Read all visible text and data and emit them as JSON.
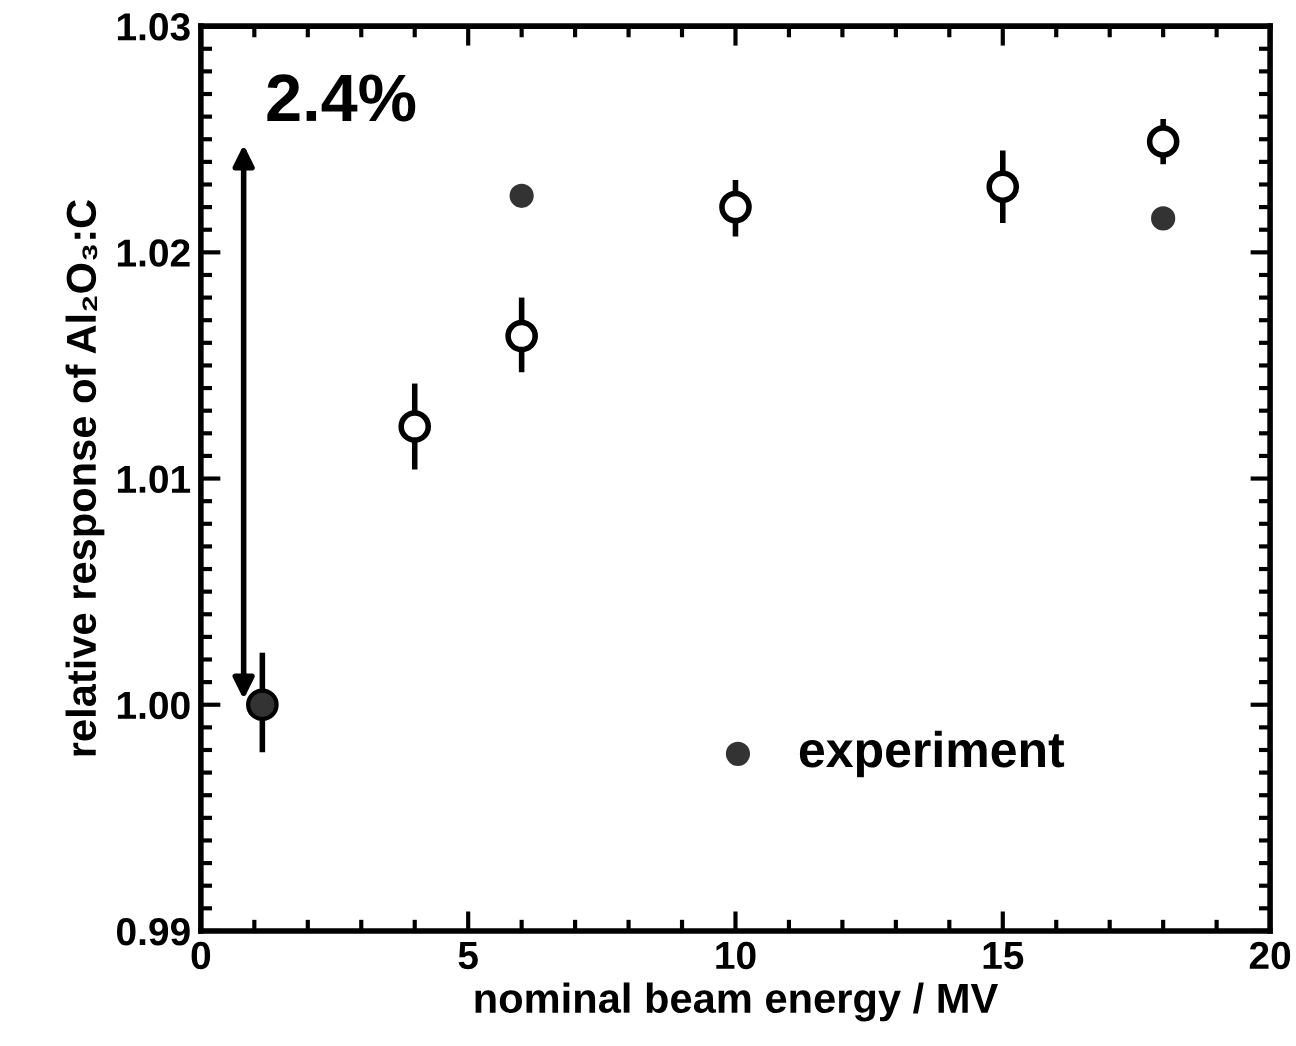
{
  "chart_data": {
    "type": "scatter",
    "xlabel": "nominal beam energy / MV",
    "ylabel": "relative response of Al₂O₃:C",
    "xlim": [
      0,
      20
    ],
    "xticks": [
      0,
      5,
      10,
      15,
      20
    ],
    "ylim": [
      0.99,
      1.03
    ],
    "yticks": [
      {
        "value": 0.99,
        "label": "0.99"
      },
      {
        "value": 1.0,
        "label": "1.00"
      },
      {
        "value": 1.01,
        "label": "1.01"
      },
      {
        "value": 1.02,
        "label": "1.02"
      },
      {
        "value": 1.03,
        "label": "1.03"
      }
    ],
    "grid": false,
    "legend": "lower right",
    "series": [
      {
        "color": "#000000",
        "marker": "circle",
        "x": [
          1.15,
          4,
          6,
          10,
          15,
          18
        ],
        "values": [
          1.0,
          1.0123,
          1.0163,
          1.022,
          1.0229,
          1.0249
        ],
        "errors": [
          [
            0.9979,
            1.0023
          ],
          [
            1.0104,
            1.0142
          ],
          [
            1.0147,
            1.018
          ],
          [
            1.0207,
            1.0232
          ],
          [
            1.0213,
            1.0245
          ],
          [
            1.0239,
            1.0259
          ]
        ]
      },
      {
        "name": "experiment",
        "color": "#333333",
        "marker": "circle",
        "x": [
          1.15,
          6,
          18
        ],
        "values": [
          1.0,
          1.0225,
          1.0215
        ]
      }
    ],
    "annotations": [
      "2.4%"
    ]
  }
}
